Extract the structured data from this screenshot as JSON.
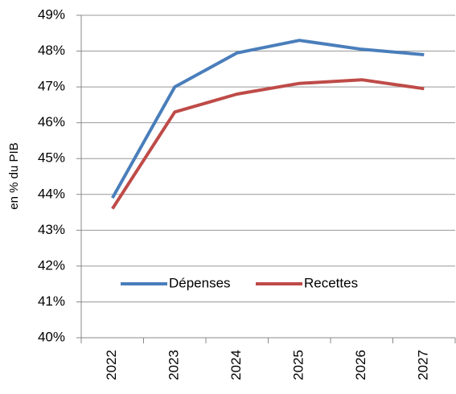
{
  "chart_data": {
    "type": "line",
    "y_label": "en % du PIB",
    "categories": [
      "2022",
      "2023",
      "2024",
      "2025",
      "2026",
      "2027"
    ],
    "series": [
      {
        "name": "Dépenses",
        "color": "#4a7ebb",
        "values": [
          43.9,
          47.0,
          47.95,
          48.3,
          48.05,
          47.9
        ]
      },
      {
        "name": "Recettes",
        "color": "#be4b48",
        "values": [
          43.6,
          46.3,
          46.8,
          47.1,
          47.2,
          46.95
        ]
      }
    ],
    "ylim": [
      40,
      49
    ],
    "yticks": [
      {
        "value": 40,
        "label": "40%"
      },
      {
        "value": 41,
        "label": "41%"
      },
      {
        "value": 42,
        "label": "42%"
      },
      {
        "value": 43,
        "label": "43%"
      },
      {
        "value": 44,
        "label": "44%"
      },
      {
        "value": 45,
        "label": "45%"
      },
      {
        "value": 46,
        "label": "46%"
      },
      {
        "value": 47,
        "label": "47%"
      },
      {
        "value": 48,
        "label": "48%"
      },
      {
        "value": 49,
        "label": "49%"
      }
    ],
    "grid": true,
    "legend": "lower center"
  }
}
